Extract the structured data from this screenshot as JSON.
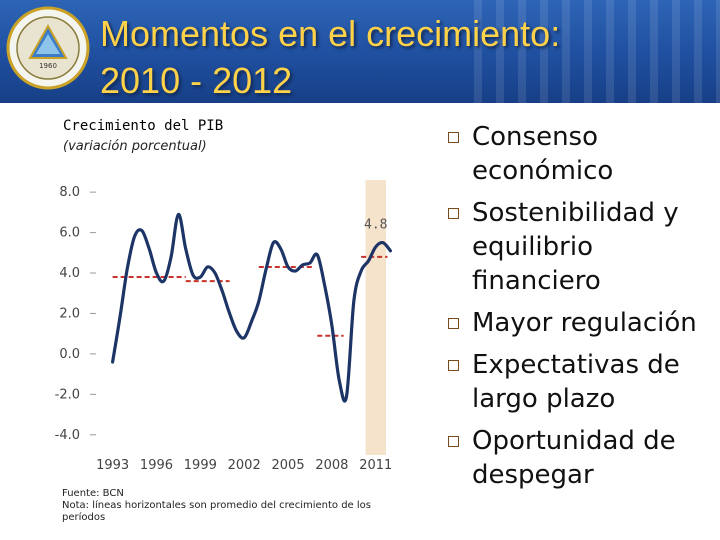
{
  "header": {
    "title_line1": "Momentos en el crecimiento:",
    "title_line2": "2010 - 2012",
    "logo_year": "1960"
  },
  "chart_data": {
    "type": "line",
    "title": "Crecimiento del PIB",
    "subtitle": "(variación porcentual)",
    "yticks": [
      "8.0",
      "6.0",
      "4.0",
      "2.0",
      "0.0",
      "-2.0",
      "-4.0"
    ],
    "ylim": [
      -5,
      8.6
    ],
    "xlim": [
      1992,
      2013
    ],
    "xticks": [
      "1993",
      "1996",
      "1999",
      "2002",
      "2005",
      "2008",
      "2011"
    ],
    "highlight_range": [
      2010.3,
      2011.7
    ],
    "annotation": {
      "text": "4.8",
      "x": 2011,
      "y": 6.2
    },
    "series": [
      {
        "x": [
          1993.0,
          1993.5,
          1994.0,
          1994.5,
          1995.0,
          1995.5,
          1996.0,
          1996.5,
          1997.0,
          1997.5,
          1998.0,
          1998.5,
          1999.0,
          1999.5,
          2000.0,
          2000.5,
          2001.0,
          2001.5,
          2002.0,
          2002.5,
          2003.0,
          2003.5,
          2004.0,
          2004.5,
          2005.0,
          2005.5,
          2006.0,
          2006.5,
          2007.0,
          2007.5,
          2008.0,
          2008.5,
          2009.0,
          2009.5,
          2010.0,
          2010.5,
          2011.0,
          2011.5,
          2012.0
        ],
        "y": [
          -0.4,
          1.8,
          4.2,
          5.8,
          6.1,
          5.2,
          4.0,
          3.6,
          4.8,
          6.9,
          5.2,
          3.9,
          3.8,
          4.3,
          4.0,
          3.1,
          2.0,
          1.1,
          0.8,
          1.6,
          2.6,
          4.2,
          5.5,
          5.2,
          4.3,
          4.1,
          4.4,
          4.5,
          4.9,
          3.4,
          1.4,
          -1.3,
          -2.1,
          2.6,
          4.1,
          4.6,
          5.3,
          5.5,
          5.1
        ]
      }
    ],
    "averages": [
      {
        "x0": 1993.0,
        "x1": 1998.0,
        "y": 3.8
      },
      {
        "x0": 1998.0,
        "x1": 2001.0,
        "y": 3.6
      },
      {
        "x0": 2003.0,
        "x1": 2006.8,
        "y": 4.3
      },
      {
        "x0": 2007.0,
        "x1": 2008.8,
        "y": 0.9
      },
      {
        "x0": 2010.0,
        "x1": 2011.8,
        "y": 4.8
      }
    ],
    "colors": {
      "line": "#1d3566",
      "average": "#c8322a",
      "highlight": "#f6e3cc",
      "axis_text": "#444444"
    }
  },
  "notes": {
    "source": "Fuente: BCN",
    "note": "Nota: líneas horizontales son promedio del crecimiento de los períodos"
  },
  "bullets": [
    "Consenso económico",
    "Sostenibilidad y equilibrio financiero",
    "Mayor regulación",
    "Expectativas de largo plazo",
    "Oportunidad de despegar"
  ]
}
